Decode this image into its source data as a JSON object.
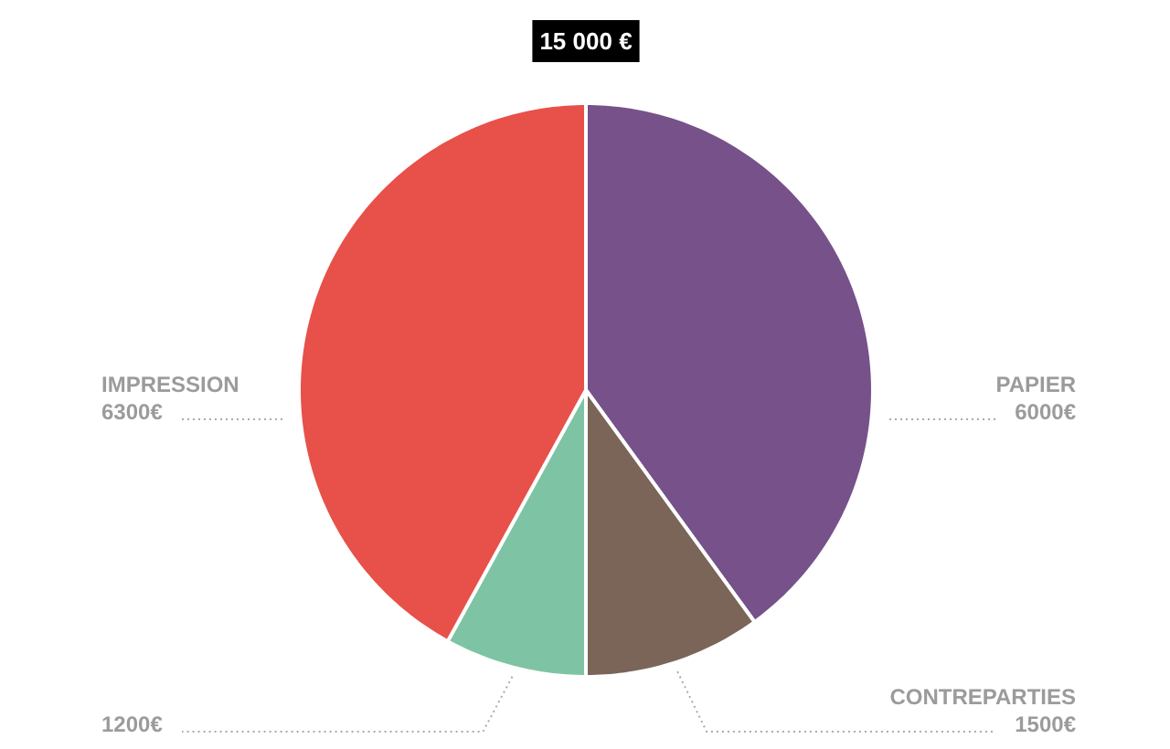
{
  "chart_data": {
    "type": "pie",
    "title": "15 000 €",
    "categories": [
      "PAPIER",
      "CONTREPARTIES",
      null,
      "IMPRESSION"
    ],
    "values": [
      6000,
      1500,
      1200,
      6300
    ],
    "colors": [
      "#76518a",
      "#7a6558",
      "#7ec4a4",
      "#e8504a"
    ],
    "value_labels": [
      "6000€",
      "1500€",
      "1200€",
      "6300€"
    ]
  }
}
